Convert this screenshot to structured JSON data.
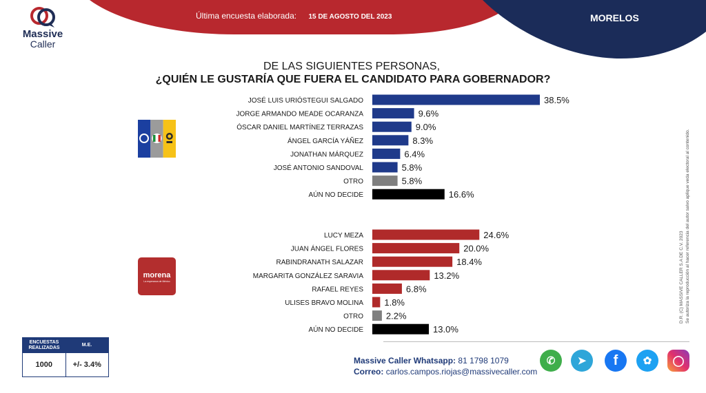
{
  "header": {
    "brand_line1": "Massive",
    "brand_line2": "Caller",
    "survey_label": "Última encuesta elaborada:",
    "survey_date": "15 DE AGOSTO DEL 2023",
    "region": "MORELOS"
  },
  "question": {
    "pre": "DE LAS SIGUIENTES PERSONAS,",
    "main": "¿QUIÉN LE GUSTARÍA QUE FUERA EL CANDIDATO PARA GOBERNADOR?"
  },
  "colors": {
    "navy": "#1f3a8a",
    "red": "#b02a2a",
    "gray": "#7f7f7f",
    "black": "#000000"
  },
  "chart_data": [
    {
      "type": "bar",
      "orientation": "horizontal",
      "group": "coalition",
      "categories": [
        "JOSÉ LUIS URIÓSTEGUI SALGADO",
        "JORGE ARMANDO MEADE OCARANZA",
        "ÓSCAR DANIEL MARTÍNEZ TERRAZAS",
        "ÁNGEL GARCÍA YÁÑEZ",
        "JONATHAN MÁRQUEZ",
        "JOSÉ ANTONIO SANDOVAL",
        "OTRO",
        "AÚN NO DECIDE"
      ],
      "values": [
        38.5,
        9.6,
        9.0,
        8.3,
        6.4,
        5.8,
        5.8,
        16.6
      ],
      "labels": [
        "38.5%",
        "9.6%",
        "9.0%",
        "8.3%",
        "6.4%",
        "5.8%",
        "5.8%",
        "16.6%"
      ],
      "bar_colors": [
        "navy",
        "navy",
        "navy",
        "navy",
        "navy",
        "navy",
        "gray",
        "black"
      ],
      "unit": "%"
    },
    {
      "type": "bar",
      "orientation": "horizontal",
      "group": "morena",
      "categories": [
        "LUCY MEZA",
        "JUAN ÁNGEL FLORES",
        "RABINDRANATH SALAZAR",
        "MARGARITA GONZÁLEZ SARAVIA",
        "RAFAEL REYES",
        "ULISES BRAVO MOLINA",
        "OTRO",
        "AÚN NO DECIDE"
      ],
      "values": [
        24.6,
        20.0,
        18.4,
        13.2,
        6.8,
        1.8,
        2.2,
        13.0
      ],
      "labels": [
        "24.6%",
        "20.0%",
        "18.4%",
        "13.2%",
        "6.8%",
        "1.8%",
        "2.2%",
        "13.0%"
      ],
      "bar_colors": [
        "red",
        "red",
        "red",
        "red",
        "red",
        "red",
        "gray",
        "black"
      ],
      "unit": "%"
    }
  ],
  "logos": {
    "coalition_icon": "pan-pri-prd-logo-icon",
    "morena_word": "morena",
    "morena_sub": "La esperanza de México"
  },
  "side_note": {
    "line1": "D.R. (C) MASSIVE CALLER S.A DE C.V. 2023",
    "line2": "Se autoriza la reproducción al hacer referencia del autor salvo aplique veda electoral al contenido."
  },
  "stats": {
    "col1_header": "ENCUESTAS REALIZADAS",
    "col2_header": "M.E.",
    "col1_value": "1000",
    "col2_value": "+/- 3.4%"
  },
  "contact": {
    "whatsapp_label": "Massive Caller Whatsapp:",
    "whatsapp_number": "81 1798 1079",
    "email_label": "Correo:",
    "email": "carlos.campos.riojas@massivecaller.com"
  },
  "social": [
    "whatsapp-icon",
    "telegram-icon",
    "facebook-icon",
    "twitter-icon",
    "instagram-icon"
  ]
}
